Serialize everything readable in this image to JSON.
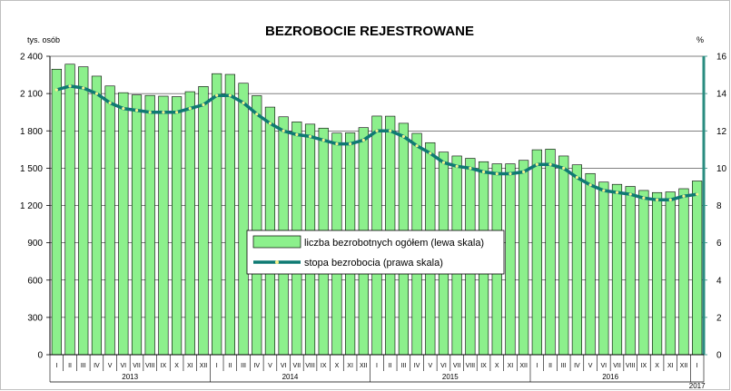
{
  "chart_data": {
    "type": "bar",
    "title": "BEZROBOCIE REJESTROWANE",
    "left_unit": "tys. osób",
    "right_unit": "%",
    "ylim": [
      0,
      2400
    ],
    "y2lim": [
      0,
      16
    ],
    "y_ticks": [
      "0",
      "300",
      "600",
      "900",
      "1 200",
      "1 500",
      "1 800",
      "2 100",
      "2 400"
    ],
    "y2_ticks": [
      "0",
      "2",
      "4",
      "6",
      "8",
      "10",
      "12",
      "14",
      "16"
    ],
    "categories": [
      "I",
      "II",
      "III",
      "IV",
      "V",
      "VI",
      "VII",
      "VIII",
      "IX",
      "X",
      "XI",
      "XII",
      "I",
      "II",
      "III",
      "IV",
      "V",
      "VI",
      "VII",
      "VIII",
      "IX",
      "X",
      "XI",
      "XII",
      "I",
      "II",
      "III",
      "IV",
      "V",
      "VI",
      "VII",
      "VIII",
      "IX",
      "X",
      "XI",
      "XII",
      "I",
      "II",
      "III",
      "IV",
      "V",
      "VI",
      "VII",
      "VIII",
      "IX",
      "X",
      "XI",
      "XII",
      "I"
    ],
    "years": [
      "2013",
      "2014",
      "2015",
      "2016",
      "2017"
    ],
    "grid": true,
    "legend_position": "center",
    "colors": {
      "bar": "#8cf08c",
      "bar_edge": "#000000",
      "line": "#0f7a73",
      "marker": "#f5f28c",
      "axis_right": "#2a8c80"
    },
    "series": [
      {
        "name": "liczba bezrobotnych ogółem (lewa skala)",
        "type": "bar",
        "axis": "left",
        "values": [
          2296,
          2336,
          2315,
          2240,
          2161,
          2107,
          2089,
          2085,
          2079,
          2075,
          2115,
          2157,
          2260,
          2254,
          2183,
          2083,
          1991,
          1913,
          1872,
          1854,
          1822,
          1782,
          1784,
          1826,
          1919,
          1918,
          1861,
          1780,
          1705,
          1629,
          1598,
          1579,
          1552,
          1535,
          1535,
          1563,
          1648,
          1653,
          1598,
          1527,
          1457,
          1388,
          1370,
          1353,
          1321,
          1304,
          1309,
          1335,
          1397
        ]
      },
      {
        "name": "stopa bezrobocia (prawa skala)",
        "type": "line",
        "axis": "right",
        "values": [
          14.2,
          14.4,
          14.3,
          14.0,
          13.5,
          13.2,
          13.1,
          13.0,
          13.0,
          13.0,
          13.2,
          13.4,
          13.9,
          13.9,
          13.5,
          12.9,
          12.4,
          12.0,
          11.8,
          11.7,
          11.5,
          11.3,
          11.3,
          11.5,
          12.0,
          12.0,
          11.7,
          11.2,
          10.8,
          10.3,
          10.1,
          10.0,
          9.8,
          9.7,
          9.7,
          9.8,
          10.2,
          10.2,
          10.0,
          9.5,
          9.1,
          8.8,
          8.7,
          8.6,
          8.4,
          8.3,
          8.3,
          8.5,
          8.6
        ]
      }
    ]
  }
}
